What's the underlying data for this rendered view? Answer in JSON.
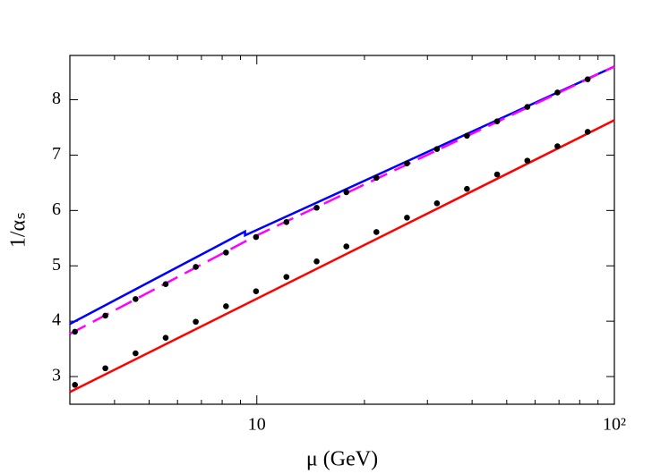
{
  "chart_data": {
    "type": "line",
    "x_label": "μ (GeV)",
    "y_label": "1/αₛ",
    "xscale": "log",
    "xlim": [
      3,
      100
    ],
    "ylim": [
      2.5,
      8.8
    ],
    "xticks": [
      10,
      {
        "value": 100,
        "label": "10²"
      }
    ],
    "xminorticks": [
      4,
      5,
      6,
      7,
      8,
      9,
      20,
      30,
      40,
      50,
      60,
      70,
      80,
      90
    ],
    "yticks": [
      3,
      4,
      5,
      6,
      7,
      8
    ],
    "series": [
      {
        "mode": "solid",
        "color": "#0000ff",
        "x": [
          3,
          9.27,
          9.27,
          100
        ],
        "values": [
          3.95,
          5.62,
          5.55,
          8.6
        ]
      },
      {
        "mode": "dashed",
        "color": "#ff00ff",
        "x": [
          3,
          10,
          100
        ],
        "values": [
          3.77,
          5.55,
          8.6
        ]
      },
      {
        "mode": "solid",
        "color": "#ff0000",
        "x": [
          3,
          100
        ],
        "values": [
          2.72,
          7.63
        ]
      },
      {
        "mode": "points",
        "color": "#000000",
        "x": [
          3.1,
          3.77,
          4.58,
          5.56,
          6.75,
          8.2,
          9.95,
          12.1,
          14.7,
          17.8,
          21.6,
          26.3,
          31.9,
          38.7,
          47.0,
          57.1,
          69.3,
          84.2
        ],
        "values": [
          3.81,
          4.1,
          4.4,
          4.67,
          4.98,
          5.24,
          5.52,
          5.79,
          6.05,
          6.33,
          6.59,
          6.85,
          7.11,
          7.35,
          7.61,
          7.87,
          8.13,
          8.37
        ]
      },
      {
        "mode": "points",
        "color": "#000000",
        "x": [
          3.1,
          3.77,
          4.58,
          5.56,
          6.75,
          8.2,
          9.95,
          12.1,
          14.7,
          17.8,
          21.6,
          26.3,
          31.9,
          38.7,
          47.0,
          57.1,
          69.3,
          84.2
        ],
        "values": [
          2.85,
          3.15,
          3.42,
          3.7,
          3.99,
          4.27,
          4.54,
          4.8,
          5.08,
          5.35,
          5.61,
          5.87,
          6.13,
          6.39,
          6.65,
          6.9,
          7.16,
          7.42
        ]
      }
    ]
  }
}
